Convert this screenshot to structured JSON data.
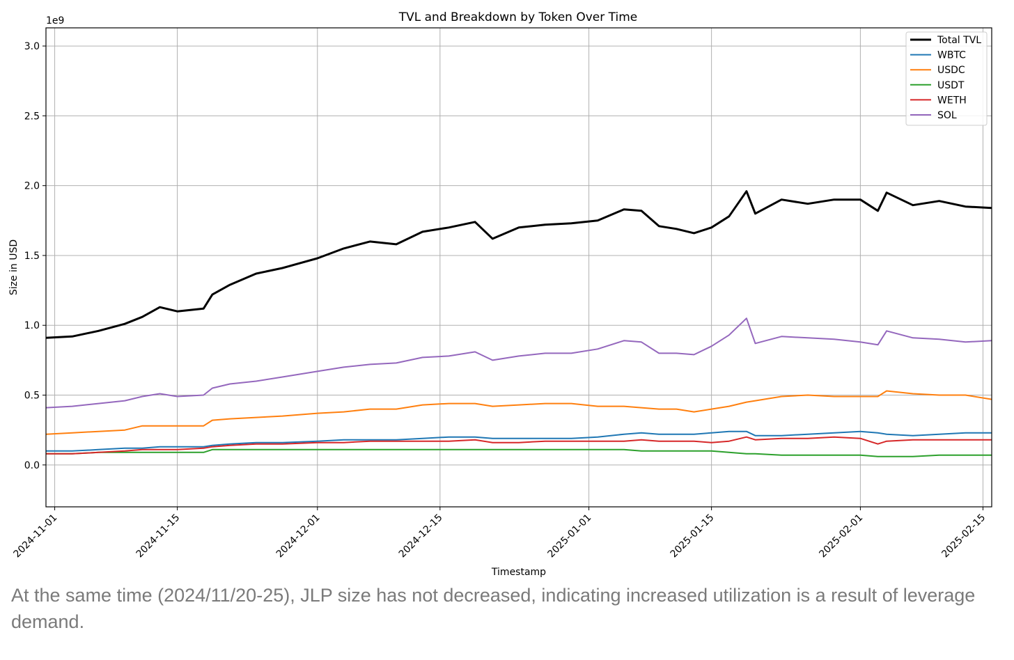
{
  "chart_data": {
    "type": "line",
    "title": "TVL and Breakdown by Token Over Time",
    "xlabel": "Timestamp",
    "ylabel": "Size in USD",
    "y_offset_text": "1e9",
    "ylim": [
      -0.3,
      3.13
    ],
    "xlim": [
      "2024-10-31",
      "2025-02-16"
    ],
    "grid": true,
    "legend_position": "top-right",
    "x_ticks": [
      "2024-11-01",
      "2024-11-15",
      "2024-12-01",
      "2024-12-15",
      "2025-01-01",
      "2025-01-15",
      "2025-02-01",
      "2025-02-15"
    ],
    "y_ticks": [
      "0.0",
      "0.5",
      "1.0",
      "1.5",
      "2.0",
      "2.5",
      "3.0"
    ],
    "x": [
      "2024-10-31",
      "2024-11-03",
      "2024-11-06",
      "2024-11-09",
      "2024-11-11",
      "2024-11-13",
      "2024-11-15",
      "2024-11-18",
      "2024-11-19",
      "2024-11-21",
      "2024-11-24",
      "2024-11-27",
      "2024-12-01",
      "2024-12-04",
      "2024-12-07",
      "2024-12-10",
      "2024-12-13",
      "2024-12-16",
      "2024-12-19",
      "2024-12-21",
      "2024-12-24",
      "2024-12-27",
      "2024-12-30",
      "2025-01-02",
      "2025-01-05",
      "2025-01-07",
      "2025-01-09",
      "2025-01-11",
      "2025-01-13",
      "2025-01-15",
      "2025-01-17",
      "2025-01-19",
      "2025-01-20",
      "2025-01-23",
      "2025-01-26",
      "2025-01-29",
      "2025-02-01",
      "2025-02-03",
      "2025-02-04",
      "2025-02-07",
      "2025-02-10",
      "2025-02-13",
      "2025-02-16"
    ],
    "series": [
      {
        "name": "Total TVL",
        "color": "#000000",
        "width": 3,
        "values": [
          0.91,
          0.92,
          0.96,
          1.01,
          1.06,
          1.13,
          1.1,
          1.12,
          1.22,
          1.29,
          1.37,
          1.41,
          1.48,
          1.55,
          1.6,
          1.58,
          1.67,
          1.7,
          1.74,
          1.62,
          1.7,
          1.72,
          1.73,
          1.75,
          1.83,
          1.82,
          1.71,
          1.69,
          1.66,
          1.7,
          1.78,
          1.96,
          1.8,
          1.9,
          1.87,
          1.9,
          1.9,
          1.82,
          1.95,
          1.86,
          1.89,
          1.85,
          1.84
        ]
      },
      {
        "name": "WBTC",
        "color": "#1f77b4",
        "width": 2,
        "values": [
          0.1,
          0.1,
          0.11,
          0.12,
          0.12,
          0.13,
          0.13,
          0.13,
          0.14,
          0.15,
          0.16,
          0.16,
          0.17,
          0.18,
          0.18,
          0.18,
          0.19,
          0.2,
          0.2,
          0.19,
          0.19,
          0.19,
          0.19,
          0.2,
          0.22,
          0.23,
          0.22,
          0.22,
          0.22,
          0.23,
          0.24,
          0.24,
          0.21,
          0.21,
          0.22,
          0.23,
          0.24,
          0.23,
          0.22,
          0.21,
          0.22,
          0.23,
          0.23
        ]
      },
      {
        "name": "USDC",
        "color": "#ff7f0e",
        "width": 2,
        "values": [
          0.22,
          0.23,
          0.24,
          0.25,
          0.28,
          0.28,
          0.28,
          0.28,
          0.32,
          0.33,
          0.34,
          0.35,
          0.37,
          0.38,
          0.4,
          0.4,
          0.43,
          0.44,
          0.44,
          0.42,
          0.43,
          0.44,
          0.44,
          0.42,
          0.42,
          0.41,
          0.4,
          0.4,
          0.38,
          0.4,
          0.42,
          0.45,
          0.46,
          0.49,
          0.5,
          0.49,
          0.49,
          0.49,
          0.53,
          0.51,
          0.5,
          0.5,
          0.47
        ]
      },
      {
        "name": "USDT",
        "color": "#2ca02c",
        "width": 2,
        "values": [
          0.08,
          0.08,
          0.09,
          0.09,
          0.09,
          0.09,
          0.09,
          0.09,
          0.11,
          0.11,
          0.11,
          0.11,
          0.11,
          0.11,
          0.11,
          0.11,
          0.11,
          0.11,
          0.11,
          0.11,
          0.11,
          0.11,
          0.11,
          0.11,
          0.11,
          0.1,
          0.1,
          0.1,
          0.1,
          0.1,
          0.09,
          0.08,
          0.08,
          0.07,
          0.07,
          0.07,
          0.07,
          0.06,
          0.06,
          0.06,
          0.07,
          0.07,
          0.07
        ]
      },
      {
        "name": "WETH",
        "color": "#d62728",
        "width": 2,
        "values": [
          0.08,
          0.08,
          0.09,
          0.1,
          0.11,
          0.11,
          0.11,
          0.12,
          0.13,
          0.14,
          0.15,
          0.15,
          0.16,
          0.16,
          0.17,
          0.17,
          0.17,
          0.17,
          0.18,
          0.16,
          0.16,
          0.17,
          0.17,
          0.17,
          0.17,
          0.18,
          0.17,
          0.17,
          0.17,
          0.16,
          0.17,
          0.2,
          0.18,
          0.19,
          0.19,
          0.2,
          0.19,
          0.15,
          0.17,
          0.18,
          0.18,
          0.18,
          0.18
        ]
      },
      {
        "name": "SOL",
        "color": "#9467bd",
        "width": 2,
        "values": [
          0.41,
          0.42,
          0.44,
          0.46,
          0.49,
          0.51,
          0.49,
          0.5,
          0.55,
          0.58,
          0.6,
          0.63,
          0.67,
          0.7,
          0.72,
          0.73,
          0.77,
          0.78,
          0.81,
          0.75,
          0.78,
          0.8,
          0.8,
          0.83,
          0.89,
          0.88,
          0.8,
          0.8,
          0.79,
          0.85,
          0.93,
          1.05,
          0.87,
          0.92,
          0.91,
          0.9,
          0.88,
          0.86,
          0.96,
          0.91,
          0.9,
          0.88,
          0.89
        ]
      }
    ]
  },
  "caption": "At the same time (2024/11/20-25), JLP size has not decreased, indicating increased utilization is a result of leverage demand."
}
